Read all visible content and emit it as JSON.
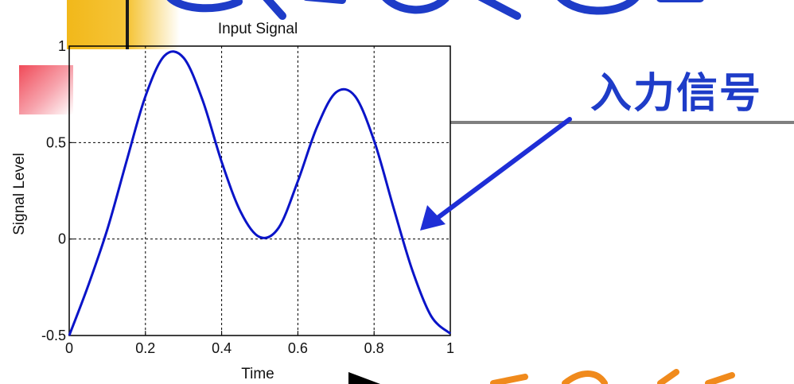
{
  "callout": {
    "label": "入力信号"
  },
  "colors": {
    "series": "#0a14c8",
    "callout": "#1e3cc8",
    "arrow": "#1e2ed6",
    "banner": "#f2b81a",
    "marker": "#f04a58"
  },
  "chart_data": {
    "type": "line",
    "title": "Input Signal",
    "xlabel": "Time",
    "ylabel": "Signal Level",
    "xlim": [
      0,
      1
    ],
    "ylim": [
      -0.5,
      1
    ],
    "xticks": [
      0,
      0.2,
      0.4,
      0.6,
      0.8,
      1
    ],
    "xtick_labels": [
      "0",
      "0.2",
      "0.4",
      "0.6",
      "0.8",
      "1"
    ],
    "yticks": [
      -0.5,
      0,
      0.5,
      1
    ],
    "ytick_labels": [
      "-0.5",
      "0",
      "0.5",
      "1"
    ],
    "grid": true,
    "series": [
      {
        "x": [
          0,
          0.05,
          0.1,
          0.15,
          0.2,
          0.25,
          0.3,
          0.35,
          0.4,
          0.45,
          0.5,
          0.55,
          0.6,
          0.65,
          0.7,
          0.75,
          0.8,
          0.85,
          0.9,
          0.95,
          1
        ],
        "y": [
          -0.5,
          -0.24,
          0.05,
          0.4,
          0.74,
          0.95,
          0.94,
          0.72,
          0.4,
          0.14,
          0.01,
          0.06,
          0.3,
          0.58,
          0.76,
          0.74,
          0.51,
          0.17,
          -0.16,
          -0.4,
          -0.49
        ]
      }
    ]
  }
}
